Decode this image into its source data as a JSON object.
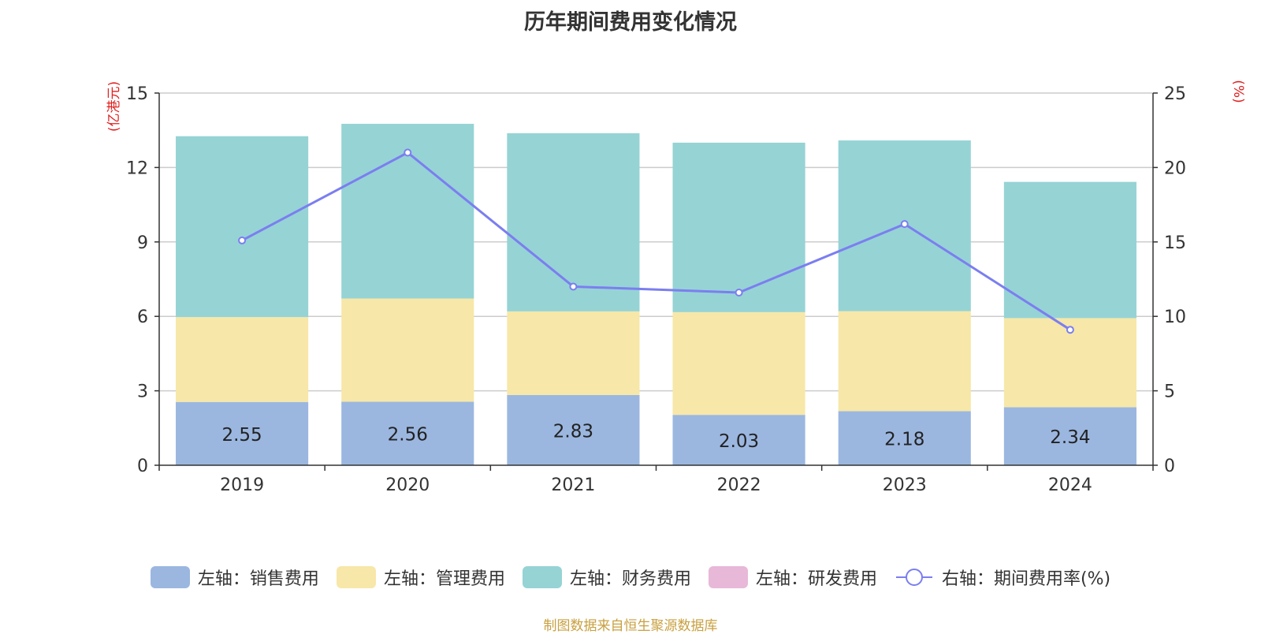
{
  "chart_data": {
    "type": "bar",
    "stacked": true,
    "title": "历年期间费用变化情况",
    "categories": [
      "2019",
      "2020",
      "2021",
      "2022",
      "2023",
      "2024"
    ],
    "left_axis": {
      "unit_label": "(亿港元)",
      "ylim": [
        0,
        15
      ],
      "ticks": [
        0,
        3,
        6,
        9,
        12,
        15
      ]
    },
    "right_axis": {
      "unit_label": "(%)",
      "ylim": [
        0,
        25
      ],
      "ticks": [
        0,
        5,
        10,
        15,
        20,
        25
      ]
    },
    "series": [
      {
        "name": "左轴：销售费用",
        "axis": "left",
        "type": "bar",
        "color": "#9bb7e0",
        "values": [
          2.55,
          2.56,
          2.83,
          2.03,
          2.18,
          2.34
        ],
        "show_labels": true
      },
      {
        "name": "左轴：管理费用",
        "axis": "left",
        "type": "bar",
        "color": "#f7e7a8",
        "values": [
          3.42,
          4.16,
          3.37,
          4.14,
          4.03,
          3.59
        ]
      },
      {
        "name": "左轴：财务费用",
        "axis": "left",
        "type": "bar",
        "color": "#96d3d5",
        "values": [
          7.29,
          7.04,
          7.18,
          6.83,
          6.88,
          5.49
        ]
      },
      {
        "name": "左轴：研发费用",
        "axis": "left",
        "type": "bar",
        "color": "#e8b8d8",
        "values": [
          0,
          0,
          0,
          0,
          0,
          0
        ]
      },
      {
        "name": "右轴：期间费用率(%)",
        "axis": "right",
        "type": "line",
        "color": "#7b7ef0",
        "values": [
          15.1,
          21.0,
          12.0,
          11.6,
          16.2,
          9.1
        ]
      }
    ],
    "grid": true,
    "legend_position": "bottom"
  },
  "source_note": "制图数据来自恒生聚源数据库"
}
